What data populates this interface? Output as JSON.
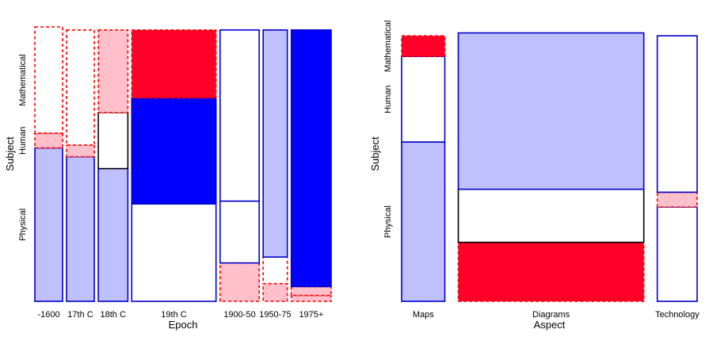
{
  "colors": {
    "strong_positive": "#0000ff",
    "moderate_positive": "#c0c0ff",
    "neutral_border": "#000000",
    "moderate_negative": "#ffc0cb",
    "strong_negative": "#ff0028",
    "positive_border": "#0000cc",
    "negative_border": "#ff0000"
  },
  "chart_data": [
    {
      "type": "mosaic",
      "title": "",
      "xlabel": "Epoch",
      "ylabel": "Subject",
      "x_categories": [
        "-1600",
        "17th C",
        "18th C",
        "19th C",
        "1900-50",
        "1950-75",
        "1975+"
      ],
      "y_categories": [
        "Physical",
        "Human",
        "Mathematical"
      ],
      "column_shares": [
        0.078,
        0.078,
        0.083,
        0.237,
        0.11,
        0.068,
        0.112
      ],
      "cells": [
        {
          "x": "-1600",
          "y": "Physical",
          "share": 0.52,
          "shade": "moderate_positive"
        },
        {
          "x": "-1600",
          "y": "Human",
          "share": 0.05,
          "shade": "moderate_negative"
        },
        {
          "x": "-1600",
          "y": "Mathematical",
          "share": 0.36,
          "shade": "none_negative"
        },
        {
          "x": "17th C",
          "y": "Physical",
          "share": 0.49,
          "shade": "moderate_positive"
        },
        {
          "x": "17th C",
          "y": "Human",
          "share": 0.04,
          "shade": "moderate_negative"
        },
        {
          "x": "17th C",
          "y": "Mathematical",
          "share": 0.39,
          "shade": "none_negative"
        },
        {
          "x": "18th C",
          "y": "Physical",
          "share": 0.45,
          "shade": "moderate_positive"
        },
        {
          "x": "18th C",
          "y": "Human",
          "share": 0.19,
          "shade": "none_neutral"
        },
        {
          "x": "18th C",
          "y": "Mathematical",
          "share": 0.28,
          "shade": "moderate_negative"
        },
        {
          "x": "19th C",
          "y": "Physical",
          "share": 0.33,
          "shade": "none_positive"
        },
        {
          "x": "19th C",
          "y": "Human",
          "share": 0.36,
          "shade": "strong_positive"
        },
        {
          "x": "19th C",
          "y": "Mathematical",
          "share": 0.23,
          "shade": "strong_negative"
        },
        {
          "x": "1900-50",
          "y": "Physical",
          "share": 0.13,
          "shade": "moderate_negative"
        },
        {
          "x": "1900-50",
          "y": "Human",
          "share": 0.21,
          "shade": "none_positive"
        },
        {
          "x": "1900-50",
          "y": "Mathematical",
          "share": 0.58,
          "shade": "none_positive"
        },
        {
          "x": "1950-75",
          "y": "Physical",
          "share": 0.06,
          "shade": "moderate_negative"
        },
        {
          "x": "1950-75",
          "y": "Human",
          "share": 0.09,
          "shade": "none_negative"
        },
        {
          "x": "1950-75",
          "y": "Mathematical",
          "share": 0.77,
          "shade": "moderate_positive"
        },
        {
          "x": "1975+",
          "y": "Physical",
          "share": 0.02,
          "shade": "moderate_negative"
        },
        {
          "x": "1975+",
          "y": "Human",
          "share": 0.03,
          "shade": "moderate_negative"
        },
        {
          "x": "1975+",
          "y": "Mathematical",
          "share": 0.87,
          "shade": "strong_positive"
        }
      ]
    },
    {
      "type": "mosaic",
      "title": "",
      "xlabel": "Aspect",
      "ylabel": "Subject",
      "x_categories": [
        "Maps",
        "Diagrams",
        "Technology"
      ],
      "y_categories": [
        "Physical",
        "Human",
        "Mathematical"
      ],
      "column_shares": [
        0.155,
        0.666,
        0.143
      ],
      "cells": [
        {
          "x": "Maps",
          "y": "Physical",
          "share": 0.54,
          "shade": "moderate_positive"
        },
        {
          "x": "Maps",
          "y": "Human",
          "share": 0.29,
          "shade": "none_positive"
        },
        {
          "x": "Maps",
          "y": "Mathematical",
          "share": 0.07,
          "shade": "strong_negative"
        },
        {
          "x": "Diagrams",
          "y": "Physical",
          "share": 0.2,
          "shade": "strong_negative"
        },
        {
          "x": "Diagrams",
          "y": "Human",
          "share": 0.18,
          "shade": "none_neutral"
        },
        {
          "x": "Diagrams",
          "y": "Mathematical",
          "share": 0.53,
          "shade": "moderate_positive"
        },
        {
          "x": "Technology",
          "y": "Physical",
          "share": 0.32,
          "shade": "none_positive"
        },
        {
          "x": "Technology",
          "y": "Human",
          "share": 0.05,
          "shade": "moderate_negative"
        },
        {
          "x": "Technology",
          "y": "Mathematical",
          "share": 0.53,
          "shade": "none_positive"
        }
      ]
    }
  ]
}
